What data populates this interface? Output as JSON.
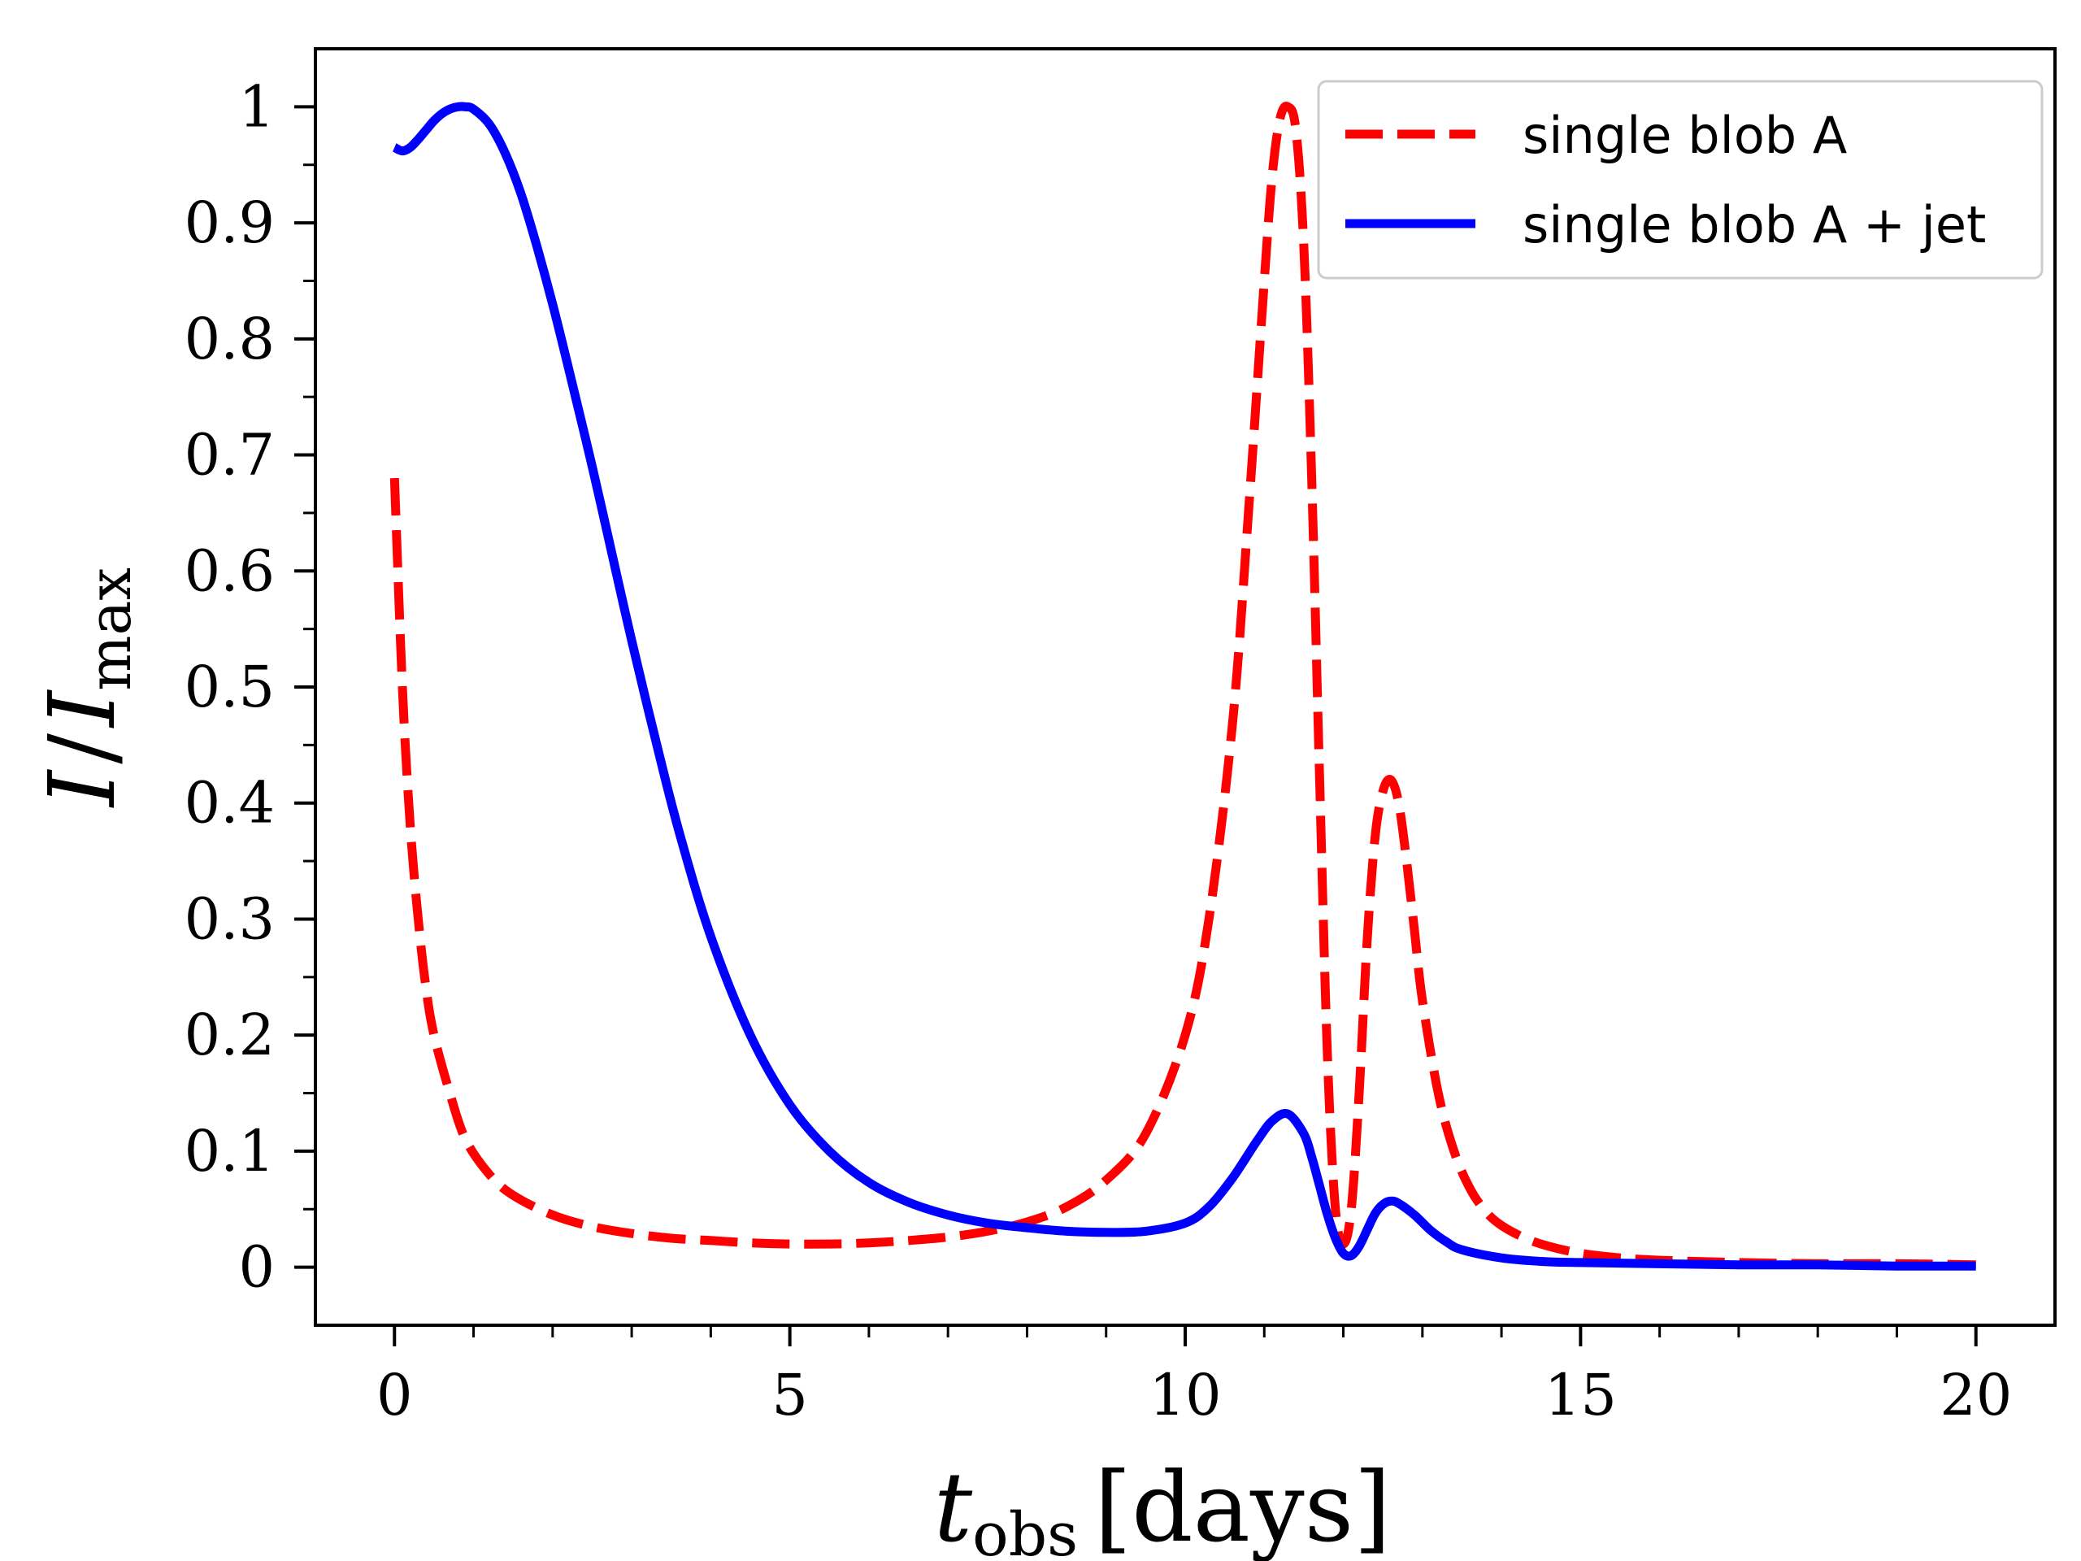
{
  "chart_data": {
    "type": "line",
    "title": "",
    "xlabel": {
      "symbol": "t",
      "subscript": "obs",
      "unit": "[days]"
    },
    "ylabel": {
      "numerator": "I",
      "slash": "/",
      "denominator": "I",
      "denominator_subscript": "max"
    },
    "xlim": [
      -1,
      21
    ],
    "ylim": [
      -0.05,
      1.05
    ],
    "x_ticks": [
      0,
      5,
      10,
      15,
      20
    ],
    "x_tick_labels": [
      "0",
      "5",
      "10",
      "15",
      "20"
    ],
    "x_minor_ticks": [
      1,
      2,
      3,
      4,
      6,
      7,
      8,
      9,
      11,
      12,
      13,
      14,
      16,
      17,
      18,
      19
    ],
    "y_ticks": [
      0,
      0.1,
      0.2,
      0.3,
      0.4,
      0.5,
      0.6,
      0.7,
      0.8,
      0.9,
      1.0
    ],
    "y_tick_labels": [
      "0",
      "0.1",
      "0.2",
      "0.3",
      "0.4",
      "0.5",
      "0.6",
      "0.7",
      "0.8",
      "0.9",
      "1"
    ],
    "y_minor_ticks": [
      0.05,
      0.15,
      0.25,
      0.35,
      0.45,
      0.55,
      0.65,
      0.75,
      0.85,
      0.95
    ],
    "legend_position": "top-right",
    "grid": false,
    "series": [
      {
        "name": "single blob A",
        "color": "#ff0000",
        "style": "dashed",
        "x": [
          0,
          0.1,
          0.2,
          0.3,
          0.4,
          0.5,
          0.7,
          0.9,
          1.2,
          1.5,
          2,
          2.5,
          3,
          3.5,
          4,
          4.5,
          5,
          5.5,
          6,
          6.5,
          7,
          7.5,
          8,
          8.5,
          9,
          9.5,
          10,
          10.3,
          10.6,
          10.8,
          11,
          11.1,
          11.2,
          11.3,
          11.4,
          11.5,
          11.6,
          11.7,
          11.8,
          11.9,
          12.0,
          12.1,
          12.2,
          12.3,
          12.4,
          12.5,
          12.6,
          12.7,
          12.8,
          12.9,
          13.0,
          13.2,
          13.4,
          13.6,
          13.8,
          14,
          14.3,
          14.6,
          15,
          15.5,
          16,
          17,
          18,
          19,
          20
        ],
        "values": [
          0.68,
          0.5,
          0.38,
          0.3,
          0.24,
          0.2,
          0.15,
          0.11,
          0.08,
          0.062,
          0.045,
          0.035,
          0.029,
          0.025,
          0.023,
          0.021,
          0.02,
          0.02,
          0.021,
          0.023,
          0.026,
          0.031,
          0.039,
          0.052,
          0.075,
          0.115,
          0.2,
          0.3,
          0.47,
          0.65,
          0.85,
          0.94,
          0.99,
          1.0,
          0.98,
          0.88,
          0.68,
          0.42,
          0.18,
          0.05,
          0.02,
          0.05,
          0.15,
          0.28,
          0.37,
          0.41,
          0.42,
          0.4,
          0.35,
          0.29,
          0.23,
          0.15,
          0.1,
          0.068,
          0.048,
          0.036,
          0.025,
          0.018,
          0.012,
          0.008,
          0.006,
          0.004,
          0.003,
          0.003,
          0.002
        ]
      },
      {
        "name": "single blob A + jet",
        "color": "#0000ff",
        "style": "solid",
        "x": [
          0,
          0.1,
          0.2,
          0.3,
          0.4,
          0.5,
          0.6,
          0.7,
          0.8,
          0.9,
          1.0,
          1.2,
          1.4,
          1.6,
          1.8,
          2.0,
          2.2,
          2.5,
          2.8,
          3.0,
          3.3,
          3.6,
          4.0,
          4.5,
          5.0,
          5.5,
          6.0,
          6.5,
          7.0,
          7.5,
          8.0,
          8.5,
          9.0,
          9.5,
          10.0,
          10.3,
          10.6,
          10.9,
          11.1,
          11.3,
          11.5,
          11.6,
          11.7,
          11.8,
          11.9,
          12.0,
          12.1,
          12.2,
          12.3,
          12.4,
          12.5,
          12.6,
          12.7,
          12.9,
          13.1,
          13.3,
          13.5,
          14,
          14.5,
          15,
          16,
          17,
          18,
          19,
          20
        ],
        "values": [
          0.965,
          0.962,
          0.965,
          0.972,
          0.98,
          0.988,
          0.994,
          0.998,
          1.0,
          1.0,
          0.998,
          0.985,
          0.96,
          0.925,
          0.88,
          0.83,
          0.775,
          0.69,
          0.6,
          0.54,
          0.455,
          0.375,
          0.285,
          0.2,
          0.14,
          0.1,
          0.073,
          0.056,
          0.045,
          0.038,
          0.034,
          0.031,
          0.03,
          0.031,
          0.038,
          0.052,
          0.077,
          0.108,
          0.126,
          0.132,
          0.115,
          0.095,
          0.07,
          0.045,
          0.025,
          0.012,
          0.01,
          0.018,
          0.032,
          0.046,
          0.054,
          0.057,
          0.055,
          0.045,
          0.032,
          0.022,
          0.015,
          0.008,
          0.005,
          0.004,
          0.003,
          0.002,
          0.002,
          0.001,
          0.001
        ]
      }
    ]
  }
}
